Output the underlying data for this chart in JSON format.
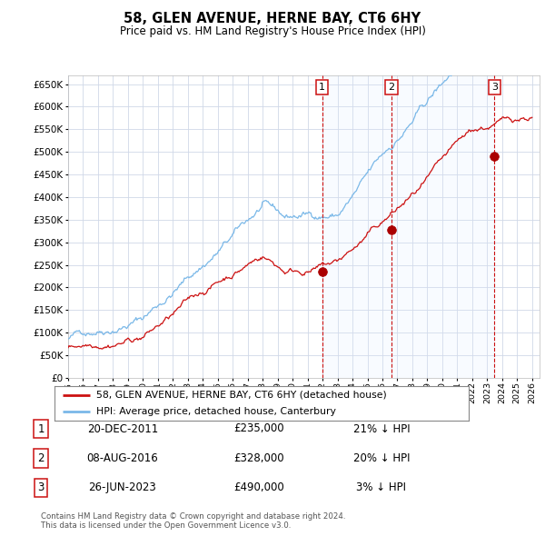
{
  "title": "58, GLEN AVENUE, HERNE BAY, CT6 6HY",
  "subtitle": "Price paid vs. HM Land Registry's House Price Index (HPI)",
  "ylim": [
    0,
    670000
  ],
  "yticks": [
    0,
    50000,
    100000,
    150000,
    200000,
    250000,
    300000,
    350000,
    400000,
    450000,
    500000,
    550000,
    600000,
    650000
  ],
  "xlim_start": 1995.0,
  "xlim_end": 2026.5,
  "xticks": [
    1995,
    1996,
    1997,
    1998,
    1999,
    2000,
    2001,
    2002,
    2003,
    2004,
    2005,
    2006,
    2007,
    2008,
    2009,
    2010,
    2011,
    2012,
    2013,
    2014,
    2015,
    2016,
    2017,
    2018,
    2019,
    2020,
    2021,
    2022,
    2023,
    2024,
    2025,
    2026
  ],
  "hpi_color": "#7ab8e8",
  "price_color": "#cc1111",
  "marker_color": "#aa0000",
  "grid_color": "#d0d8e8",
  "shade_color": "#ddeeff",
  "sale_dates": [
    2011.97,
    2016.6,
    2023.48
  ],
  "sale_prices": [
    235000,
    328000,
    490000
  ],
  "sale_labels": [
    "1",
    "2",
    "3"
  ],
  "vline_color": "#cc1111",
  "sale_table": [
    {
      "num": "1",
      "date": "20-DEC-2011",
      "price": "£235,000",
      "pct": "21% ↓ HPI"
    },
    {
      "num": "2",
      "date": "08-AUG-2016",
      "price": "£328,000",
      "pct": "20% ↓ HPI"
    },
    {
      "num": "3",
      "date": "26-JUN-2023",
      "price": "£490,000",
      "pct": "3% ↓ HPI"
    }
  ],
  "legend_entries": [
    {
      "label": "58, GLEN AVENUE, HERNE BAY, CT6 6HY (detached house)",
      "color": "#cc1111"
    },
    {
      "label": "HPI: Average price, detached house, Canterbury",
      "color": "#7ab8e8"
    }
  ],
  "footer": "Contains HM Land Registry data © Crown copyright and database right 2024.\nThis data is licensed under the Open Government Licence v3.0.",
  "background_color": "#ffffff"
}
